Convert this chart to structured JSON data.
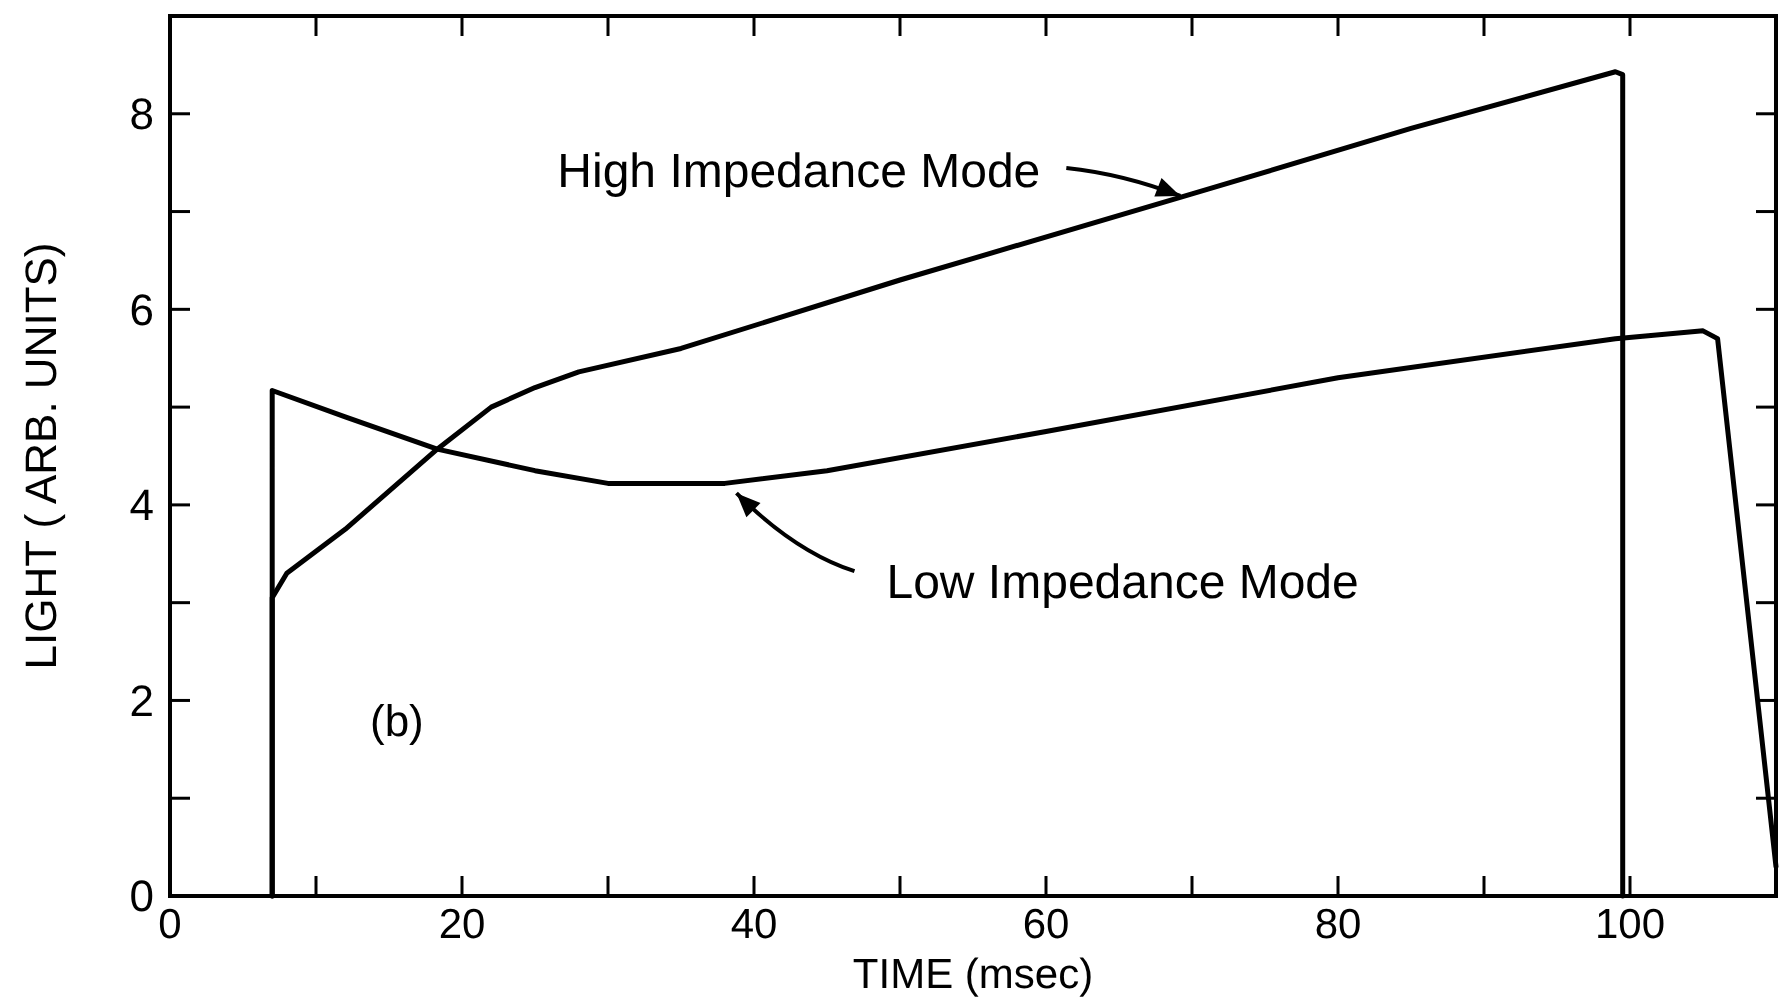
{
  "chart_data": {
    "type": "line",
    "xlabel": "TIME (msec)",
    "ylabel": "LIGHT ( ARB. UNITS)",
    "xlim": [
      0,
      110
    ],
    "ylim": [
      0,
      9
    ],
    "xticks": [
      0,
      {
        "value": 10,
        "label": null
      },
      20,
      {
        "value": 30,
        "label": null
      },
      40,
      {
        "value": 50,
        "label": null
      },
      60,
      {
        "value": 70,
        "label": null
      },
      80,
      {
        "value": 90,
        "label": null
      },
      100
    ],
    "yticks": [
      0,
      {
        "value": 1,
        "label": null
      },
      2,
      {
        "value": 3,
        "label": null
      },
      4,
      {
        "value": 5,
        "label": null
      },
      6,
      {
        "value": 7,
        "label": null
      },
      8
    ],
    "grid": false,
    "marker": "none",
    "line_style": "solid",
    "series": [
      {
        "color": "#000000",
        "x": [
          7,
          7,
          8,
          12,
          18.3,
          22,
          25,
          28,
          35,
          50,
          70,
          85,
          99,
          99.5,
          99.5
        ],
        "values": [
          0,
          3.05,
          3.3,
          3.75,
          4.57,
          5.0,
          5.2,
          5.36,
          5.6,
          6.3,
          7.18,
          7.85,
          8.43,
          8.4,
          0
        ]
      },
      {
        "color": "#000000",
        "x": [
          7,
          7,
          12,
          18.3,
          25,
          30,
          38,
          45,
          60,
          80,
          99,
          105,
          106,
          110
        ],
        "values": [
          0,
          5.17,
          4.9,
          4.57,
          4.35,
          4.22,
          4.22,
          4.35,
          4.75,
          5.3,
          5.7,
          5.78,
          5.7,
          0.3
        ]
      }
    ],
    "annotations": [
      {
        "text": "High Impedance Mode",
        "x": 69.2,
        "y": 7.16
      },
      {
        "text": "Low Impedance Mode",
        "x": 38.8,
        "y": 4.12
      },
      "(b)"
    ]
  }
}
